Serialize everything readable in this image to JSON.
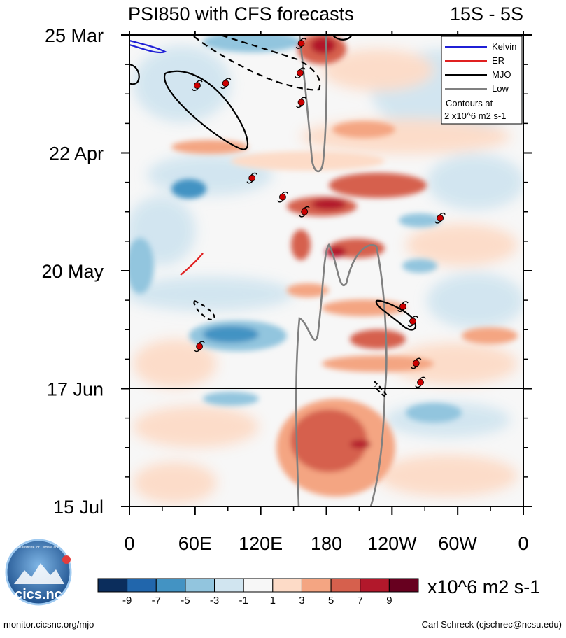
{
  "chart_data": {
    "type": "heatmap",
    "title": "PSI850 with CFS forecasts",
    "subtitle": "15S - 5S",
    "x_ticks": [
      "0",
      "60E",
      "120E",
      "180",
      "120W",
      "60W",
      "0"
    ],
    "x_tick_values": [
      0,
      60,
      120,
      180,
      240,
      300,
      360
    ],
    "xlim": [
      0,
      360
    ],
    "y_ticks": [
      "25 Mar",
      "22 Apr",
      "20 May",
      "17 Jun",
      "15 Jul"
    ],
    "y_tick_days": [
      0,
      28,
      56,
      84,
      112
    ],
    "ylim_days": [
      0,
      112
    ],
    "forecast_start_label": "17 Jun",
    "colorbar": {
      "levels": [
        "-9",
        "-7",
        "-5",
        "-3",
        "-1",
        "1",
        "3",
        "5",
        "7",
        "9"
      ],
      "level_values": [
        -9,
        -7,
        -5,
        -3,
        -1,
        1,
        3,
        5,
        7,
        9
      ],
      "colors": [
        "#0b2d5c",
        "#2166ac",
        "#4393c3",
        "#92c5de",
        "#d1e5f0",
        "#f7f7f7",
        "#fddbc7",
        "#f4a582",
        "#d6604d",
        "#b2182b",
        "#67001f"
      ],
      "units": "x10^6 m2 s-1"
    },
    "legend": {
      "position": "top-right",
      "entries": [
        {
          "label": "Kelvin",
          "color": "#1f1fd6"
        },
        {
          "label": "ER",
          "color": "#e02020"
        },
        {
          "label": "MJO",
          "color": "#000000"
        },
        {
          "label": "Low",
          "color": "#808080"
        }
      ],
      "note_line1": "Contours at",
      "note_line2": "2 x10^6 m2 s-1"
    },
    "cyclones": [
      {
        "lon": 157,
        "day": 2
      },
      {
        "lon": 156,
        "day": 9
      },
      {
        "lon": 157,
        "day": 16
      },
      {
        "lon": 62,
        "day": 12
      },
      {
        "lon": 88,
        "day": 11.5
      },
      {
        "lon": 112,
        "day": 34
      },
      {
        "lon": 140,
        "day": 38.5
      },
      {
        "lon": 160,
        "day": 42
      },
      {
        "lon": 284,
        "day": 43.5
      },
      {
        "lon": 64,
        "day": 74
      },
      {
        "lon": 250,
        "day": 64.5
      },
      {
        "lon": 259,
        "day": 68
      },
      {
        "lon": 262,
        "day": 78
      },
      {
        "lon": 266,
        "day": 82.5
      }
    ]
  },
  "footer": {
    "left": "monitor.cicsnc.org/mjo",
    "right": "Carl Schreck (cjschrec@ncsu.edu)"
  },
  "logo": {
    "text": "cics.nc",
    "ring_text": "Cooperative Institute for Climate and Satellites"
  },
  "colors": {
    "accent": "#000000"
  }
}
